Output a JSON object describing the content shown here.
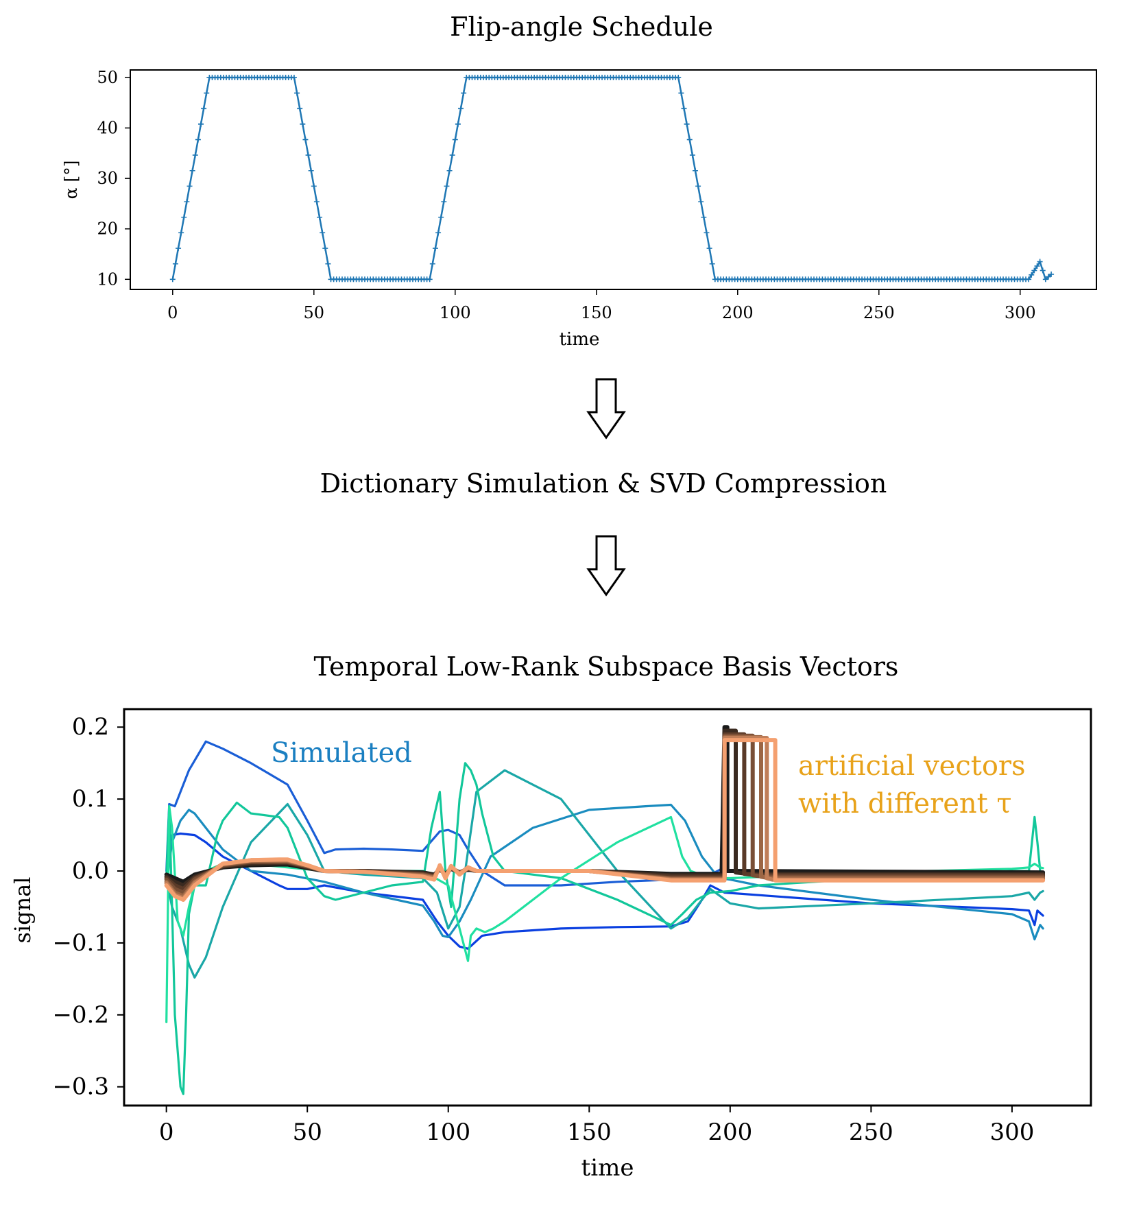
{
  "titles": {
    "top": "Flip-angle Schedule",
    "middle": "Dictionary Simulation & SVD Compression",
    "bottom": "Temporal Low-Rank Subspace Basis Vectors"
  },
  "colors": {
    "schedule": "#1f77b4",
    "simulated_label": "#1a7fc1",
    "artificial_label": "#e8a21a",
    "simulated_lines": [
      "#0a3fe0",
      "#1a5ed6",
      "#1a8cbf",
      "#1aa7a7",
      "#12c79a",
      "#20e0a0"
    ],
    "artificial_lines": [
      "#1a1a1a",
      "#3a2a20",
      "#5a3a28",
      "#7a4f36",
      "#9c6644",
      "#c07e58",
      "#f4a070"
    ]
  },
  "chart_data": [
    {
      "type": "line",
      "title": "Flip-angle Schedule",
      "xlabel": "time",
      "ylabel": "α [°]",
      "xlim": [
        -15,
        327
      ],
      "ylim": [
        8,
        51.5
      ],
      "xticks": [
        0,
        50,
        100,
        150,
        200,
        250,
        300
      ],
      "yticks": [
        10,
        20,
        30,
        40,
        50
      ],
      "marker": "+",
      "series": [
        {
          "name": "flip angle",
          "x": [
            0,
            13,
            43,
            56,
            91,
            104,
            179,
            192,
            303,
            307,
            309,
            311
          ],
          "y": [
            10,
            50,
            50,
            10,
            10,
            50,
            50,
            10,
            10,
            13.5,
            10,
            11
          ]
        }
      ]
    },
    {
      "type": "line",
      "title": "Temporal Low-Rank Subspace Basis Vectors",
      "xlabel": "time",
      "ylabel": "signal",
      "xlim": [
        -15,
        328
      ],
      "ylim": [
        -0.326,
        0.225
      ],
      "xticks": [
        0,
        50,
        100,
        150,
        200,
        250,
        300
      ],
      "yticks": [
        0.2,
        0.1,
        0.0,
        -0.1,
        -0.2,
        -0.3
      ],
      "yticklabels": [
        "0.2",
        "0.1",
        "0.0",
        "−0.1",
        "−0.2",
        "−0.3"
      ],
      "annotations": [
        {
          "text": "Simulated",
          "color": "simulated_label"
        },
        {
          "text": "artificial vectors",
          "color": "artificial_label"
        },
        {
          "text": "with different  τ",
          "color": "artificial_label"
        }
      ],
      "series": [
        {
          "name": "simulated 1",
          "x": [
            0,
            2,
            5,
            10,
            14,
            20,
            30,
            40,
            43,
            50,
            56,
            70,
            91,
            96,
            100,
            104,
            107,
            112,
            120,
            140,
            160,
            179,
            185,
            190,
            193,
            198,
            250,
            300,
            306,
            308,
            309,
            311
          ],
          "y": [
            -0.01,
            0.05,
            0.052,
            0.05,
            0.04,
            0.02,
            0.0,
            -0.02,
            -0.025,
            -0.025,
            -0.02,
            -0.03,
            -0.04,
            -0.07,
            -0.09,
            -0.105,
            -0.108,
            -0.09,
            -0.085,
            -0.08,
            -0.078,
            -0.077,
            -0.07,
            -0.04,
            -0.02,
            -0.03,
            -0.045,
            -0.053,
            -0.055,
            -0.075,
            -0.055,
            -0.062
          ]
        },
        {
          "name": "simulated 2",
          "x": [
            0,
            1,
            3,
            5,
            8,
            14,
            20,
            30,
            43,
            50,
            56,
            60,
            70,
            80,
            91,
            97,
            100,
            104,
            107,
            112,
            120,
            140,
            160,
            179,
            182,
            188,
            193,
            198,
            200,
            250,
            300,
            306,
            308,
            309,
            311
          ],
          "y": [
            0.0,
            0.093,
            0.09,
            0.11,
            0.14,
            0.18,
            0.17,
            0.15,
            0.12,
            0.07,
            0.025,
            0.03,
            0.031,
            0.03,
            0.028,
            0.055,
            0.057,
            0.05,
            0.03,
            0.0,
            -0.02,
            -0.02,
            -0.015,
            -0.012,
            -0.012,
            -0.012,
            -0.005,
            0.005,
            0.0,
            -0.002,
            -0.003,
            -0.003,
            -0.005,
            -0.003,
            -0.004
          ]
        },
        {
          "name": "simulated 3",
          "x": [
            0,
            2,
            5,
            8,
            10,
            14,
            20,
            30,
            43,
            56,
            70,
            91,
            95,
            98,
            100,
            104,
            108,
            115,
            130,
            150,
            170,
            179,
            184,
            190,
            193,
            196,
            200,
            210,
            250,
            300,
            306,
            308,
            310,
            311
          ],
          "y": [
            -0.02,
            0.04,
            0.07,
            0.085,
            0.08,
            0.06,
            0.03,
            0.0,
            -0.005,
            -0.015,
            -0.03,
            -0.048,
            -0.07,
            -0.09,
            -0.092,
            -0.07,
            -0.04,
            0.02,
            0.06,
            0.085,
            0.09,
            0.092,
            0.07,
            0.02,
            0.005,
            -0.01,
            -0.012,
            -0.02,
            -0.04,
            -0.06,
            -0.07,
            -0.095,
            -0.075,
            -0.08
          ]
        },
        {
          "name": "simulated 4",
          "x": [
            0,
            2,
            5,
            8,
            10,
            14,
            20,
            30,
            43,
            50,
            56,
            70,
            91,
            96,
            100,
            104,
            106,
            110,
            120,
            140,
            160,
            179,
            185,
            190,
            193,
            200,
            210,
            250,
            300,
            306,
            308,
            310,
            311
          ],
          "y": [
            -0.01,
            -0.05,
            -0.08,
            -0.13,
            -0.148,
            -0.12,
            -0.05,
            0.04,
            0.093,
            0.05,
            0.0,
            -0.005,
            -0.01,
            -0.03,
            -0.08,
            -0.05,
            0.0,
            0.11,
            0.14,
            0.1,
            0.0,
            -0.08,
            -0.065,
            -0.04,
            -0.025,
            -0.045,
            -0.052,
            -0.045,
            -0.035,
            -0.03,
            -0.04,
            -0.03,
            -0.028
          ]
        },
        {
          "name": "simulated 5",
          "x": [
            0,
            1,
            2,
            3,
            5,
            6,
            7,
            8,
            10,
            14,
            18,
            20,
            25,
            30,
            40,
            43,
            50,
            56,
            60,
            70,
            80,
            91,
            94,
            97,
            99,
            101,
            104,
            106,
            108,
            110,
            112,
            116,
            120,
            140,
            160,
            179,
            183,
            188,
            193,
            200,
            210,
            250,
            300,
            306,
            308,
            309,
            310,
            311
          ],
          "y": [
            -0.01,
            0.09,
            -0.05,
            -0.2,
            -0.3,
            -0.31,
            -0.2,
            -0.06,
            -0.02,
            -0.02,
            0.05,
            0.07,
            0.095,
            0.08,
            0.075,
            0.06,
            -0.01,
            -0.035,
            -0.04,
            -0.03,
            -0.02,
            -0.015,
            0.06,
            0.11,
            0.0,
            -0.05,
            0.1,
            0.15,
            0.14,
            0.12,
            0.08,
            0.02,
            0.0,
            -0.01,
            -0.04,
            -0.075,
            -0.06,
            -0.04,
            -0.03,
            -0.028,
            -0.02,
            -0.01,
            0.0,
            0.0,
            0.075,
            0.04,
            0.0,
            -0.01
          ]
        },
        {
          "name": "simulated 6",
          "x": [
            0,
            1,
            2,
            4,
            6,
            8,
            10,
            14,
            20,
            30,
            43,
            56,
            70,
            91,
            100,
            104,
            107,
            108,
            110,
            113,
            116,
            120,
            130,
            140,
            160,
            179,
            183,
            186,
            193,
            200,
            250,
            300,
            306,
            308,
            310,
            311
          ],
          "y": [
            -0.21,
            0.09,
            0.06,
            -0.07,
            -0.09,
            -0.05,
            -0.02,
            0.0,
            0.01,
            0.01,
            0.005,
            0.0,
            0.0,
            0.0,
            -0.02,
            -0.08,
            -0.125,
            -0.09,
            -0.08,
            -0.085,
            -0.08,
            -0.07,
            -0.04,
            -0.01,
            0.04,
            0.075,
            0.02,
            0.0,
            -0.01,
            -0.01,
            -0.002,
            0.003,
            0.005,
            0.01,
            0.005,
            0.004
          ]
        },
        {
          "name": "artificial τ=1",
          "x": [
            0,
            3,
            6,
            10,
            20,
            30,
            40,
            43,
            50,
            56,
            70,
            91,
            95,
            97,
            99,
            101,
            104,
            107,
            110,
            120,
            150,
            179,
            190,
            197,
            197,
            198,
            199,
            199,
            200,
            310,
            311
          ],
          "y": [
            -0.005,
            -0.01,
            -0.015,
            -0.005,
            0.005,
            0.008,
            0.009,
            0.009,
            0.004,
            0.0,
            0.0,
            -0.002,
            -0.005,
            0.002,
            -0.004,
            0.003,
            -0.002,
            0.002,
            0.0,
            0.0,
            0.0,
            -0.004,
            -0.004,
            -0.004,
            0.0,
            0.2,
            0.2,
            0.0,
            0.0,
            -0.002,
            -0.002
          ]
        },
        {
          "name": "artificial τ=2",
          "x": [
            0,
            3,
            6,
            10,
            20,
            30,
            40,
            43,
            50,
            56,
            70,
            91,
            95,
            97,
            99,
            101,
            104,
            107,
            110,
            120,
            150,
            179,
            190,
            198,
            198,
            202,
            202,
            206,
            310,
            311
          ],
          "y": [
            -0.008,
            -0.015,
            -0.02,
            -0.008,
            0.006,
            0.01,
            0.011,
            0.011,
            0.005,
            0.0,
            0.0,
            -0.003,
            -0.006,
            0.003,
            -0.005,
            0.004,
            -0.002,
            0.003,
            0.0,
            0.0,
            0.0,
            -0.006,
            -0.006,
            -0.006,
            0.195,
            0.195,
            -0.002,
            -0.004,
            -0.004,
            -0.004
          ]
        },
        {
          "name": "artificial τ=3",
          "x": [
            0,
            3,
            6,
            10,
            20,
            30,
            40,
            43,
            50,
            56,
            70,
            91,
            95,
            97,
            99,
            101,
            104,
            107,
            110,
            120,
            150,
            179,
            190,
            198,
            198,
            205,
            205,
            210,
            310,
            311
          ],
          "y": [
            -0.01,
            -0.02,
            -0.025,
            -0.01,
            0.007,
            0.012,
            0.012,
            0.012,
            0.006,
            0.0,
            -0.001,
            -0.004,
            -0.007,
            0.004,
            -0.006,
            0.005,
            -0.003,
            0.003,
            0.0,
            0.0,
            0.0,
            -0.008,
            -0.008,
            -0.008,
            0.19,
            0.19,
            -0.004,
            -0.006,
            -0.006,
            -0.006
          ]
        },
        {
          "name": "artificial τ=4",
          "x": [
            0,
            3,
            6,
            10,
            20,
            30,
            40,
            43,
            50,
            56,
            70,
            91,
            95,
            97,
            99,
            101,
            104,
            107,
            110,
            120,
            150,
            179,
            190,
            198,
            198,
            208,
            208,
            212,
            310,
            311
          ],
          "y": [
            -0.012,
            -0.025,
            -0.03,
            -0.012,
            0.008,
            0.013,
            0.013,
            0.013,
            0.007,
            0.0,
            -0.001,
            -0.005,
            -0.008,
            0.005,
            -0.007,
            0.005,
            -0.003,
            0.004,
            0.0,
            0.0,
            0.0,
            -0.01,
            -0.01,
            -0.01,
            0.188,
            0.188,
            -0.006,
            -0.008,
            -0.008,
            -0.008
          ]
        },
        {
          "name": "artificial τ=5",
          "x": [
            0,
            3,
            6,
            10,
            20,
            30,
            40,
            43,
            50,
            56,
            70,
            91,
            95,
            97,
            99,
            101,
            104,
            107,
            110,
            120,
            150,
            179,
            190,
            198,
            198,
            211,
            211,
            214,
            310,
            311
          ],
          "y": [
            -0.015,
            -0.03,
            -0.035,
            -0.015,
            0.009,
            0.014,
            0.014,
            0.014,
            0.007,
            0.0,
            -0.001,
            -0.006,
            -0.009,
            0.006,
            -0.008,
            0.006,
            -0.004,
            0.004,
            0.0,
            0.0,
            0.0,
            -0.011,
            -0.011,
            -0.011,
            0.186,
            0.186,
            -0.008,
            -0.01,
            -0.01,
            -0.01
          ]
        },
        {
          "name": "artificial τ=6",
          "x": [
            0,
            3,
            6,
            10,
            20,
            30,
            40,
            43,
            50,
            56,
            70,
            91,
            95,
            97,
            99,
            101,
            104,
            107,
            110,
            120,
            150,
            179,
            190,
            198,
            198,
            213,
            213,
            215,
            310,
            311
          ],
          "y": [
            -0.017,
            -0.033,
            -0.038,
            -0.017,
            0.01,
            0.015,
            0.015,
            0.015,
            0.008,
            0.0,
            -0.001,
            -0.007,
            -0.01,
            0.007,
            -0.009,
            0.006,
            -0.004,
            0.005,
            0.0,
            0.0,
            0.0,
            -0.012,
            -0.012,
            -0.012,
            0.185,
            0.185,
            -0.01,
            -0.012,
            -0.012,
            -0.012
          ]
        },
        {
          "name": "artificial τ=7",
          "x": [
            0,
            3,
            6,
            10,
            20,
            30,
            40,
            43,
            50,
            56,
            70,
            91,
            95,
            97,
            99,
            101,
            104,
            107,
            110,
            120,
            150,
            179,
            190,
            197,
            198,
            198,
            216,
            216,
            310,
            311
          ],
          "y": [
            -0.02,
            -0.035,
            -0.04,
            -0.02,
            0.01,
            0.015,
            0.016,
            0.016,
            0.008,
            0.0,
            -0.001,
            -0.008,
            -0.012,
            0.008,
            -0.01,
            0.007,
            -0.005,
            0.005,
            0.0,
            0.0,
            0.0,
            -0.013,
            -0.013,
            -0.013,
            -0.013,
            0.182,
            0.182,
            -0.013,
            -0.013,
            -0.013
          ]
        }
      ]
    }
  ]
}
